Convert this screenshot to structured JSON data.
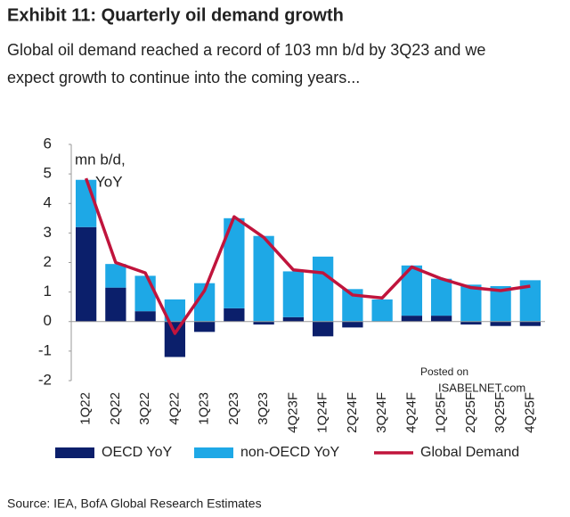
{
  "chart_data": {
    "type": "stacked-bar-line",
    "title": "Exhibit 11: Quarterly oil demand growth",
    "subtitle": [
      "Global oil demand reached a record of 103 mn b/d by 3Q23 and we",
      "expect growth to continue into the coming years..."
    ],
    "y_label": [
      "mn b/d,",
      "YoY"
    ],
    "categories": [
      "1Q22",
      "2Q22",
      "3Q22",
      "4Q22",
      "1Q23",
      "2Q23",
      "3Q23",
      "4Q23F",
      "1Q24F",
      "2Q24F",
      "3Q24F",
      "4Q24F",
      "1Q25F",
      "2Q25F",
      "3Q25F",
      "4Q25F"
    ],
    "series": [
      {
        "name": "OECD YoY",
        "color": "#0b1f6b",
        "kind": "bar",
        "values": [
          3.2,
          1.15,
          0.35,
          -1.2,
          -0.35,
          0.45,
          -0.1,
          0.15,
          -0.5,
          -0.2,
          0,
          0.2,
          0.2,
          -0.1,
          -0.15,
          -0.15
        ]
      },
      {
        "name": "non-OECD YoY",
        "color": "#1ea8e6",
        "kind": "bar",
        "values": [
          1.6,
          0.8,
          1.2,
          0.75,
          1.3,
          3.05,
          2.9,
          1.55,
          2.2,
          1.1,
          0.75,
          1.7,
          1.25,
          1.25,
          1.2,
          1.4
        ]
      },
      {
        "name": "Global Demand",
        "color": "#c0143c",
        "kind": "line",
        "values": [
          4.85,
          2.0,
          1.65,
          -0.4,
          1.05,
          3.55,
          2.85,
          1.75,
          1.65,
          0.9,
          0.8,
          1.85,
          1.45,
          1.15,
          1.05,
          1.2
        ]
      }
    ],
    "ylim": [
      -2,
      6
    ],
    "yticks": [
      -2,
      -1,
      0,
      1,
      2,
      3,
      4,
      5,
      6
    ],
    "watermark": [
      "Posted on",
      "ISABELNET.com"
    ],
    "source": "Source: IEA, BofA Global Research Estimates"
  }
}
